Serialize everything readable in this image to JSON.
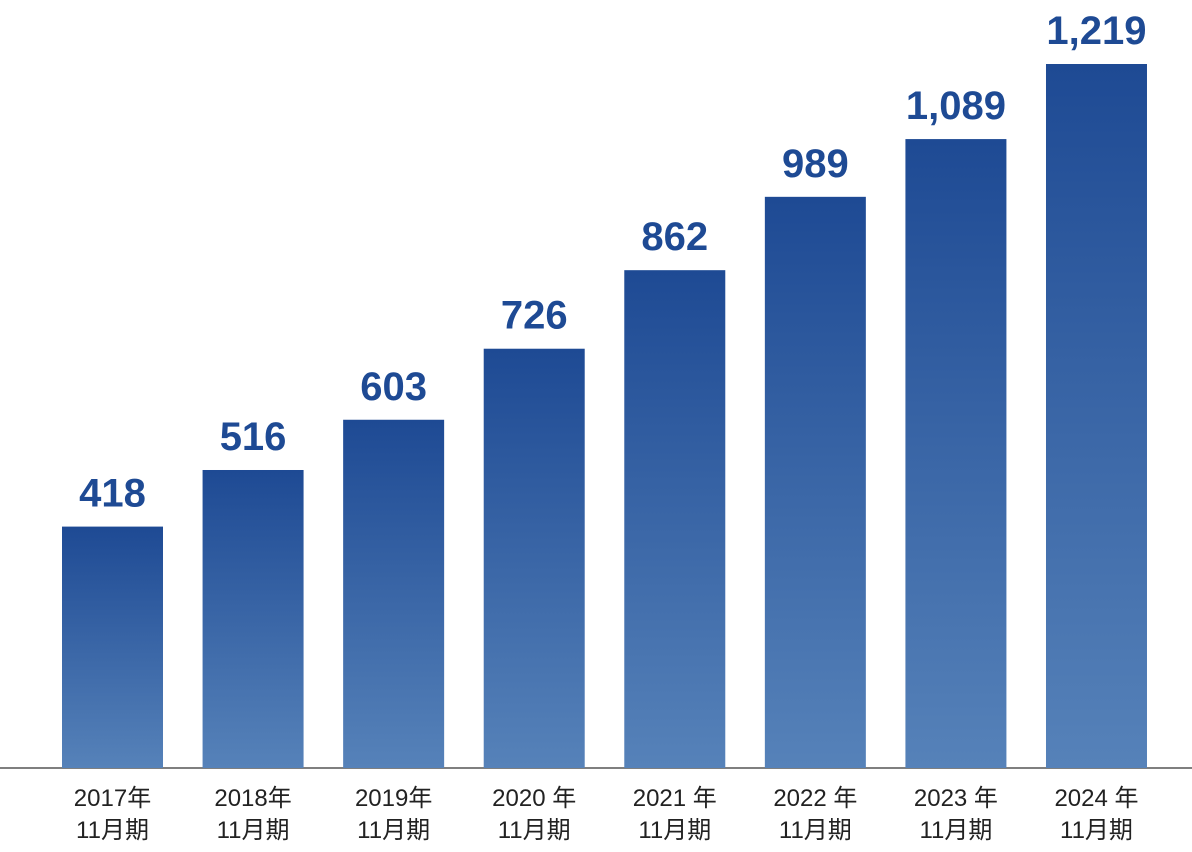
{
  "chart_data": {
    "type": "bar",
    "categories": [
      [
        "2017年",
        "11月期"
      ],
      [
        "2018年",
        "11月期"
      ],
      [
        "2019年",
        "11月期"
      ],
      [
        "2020 年",
        "11月期"
      ],
      [
        "2021 年",
        "11月期"
      ],
      [
        "2022 年",
        "11月期"
      ],
      [
        "2023 年",
        "11月期"
      ],
      [
        "2024 年",
        "11月期"
      ]
    ],
    "values": [
      418,
      516,
      603,
      726,
      862,
      989,
      1089,
      1219
    ],
    "value_labels": [
      "418",
      "516",
      "603",
      "726",
      "862",
      "989",
      "1,089",
      "1,219"
    ],
    "color": "#1e4a94"
  }
}
